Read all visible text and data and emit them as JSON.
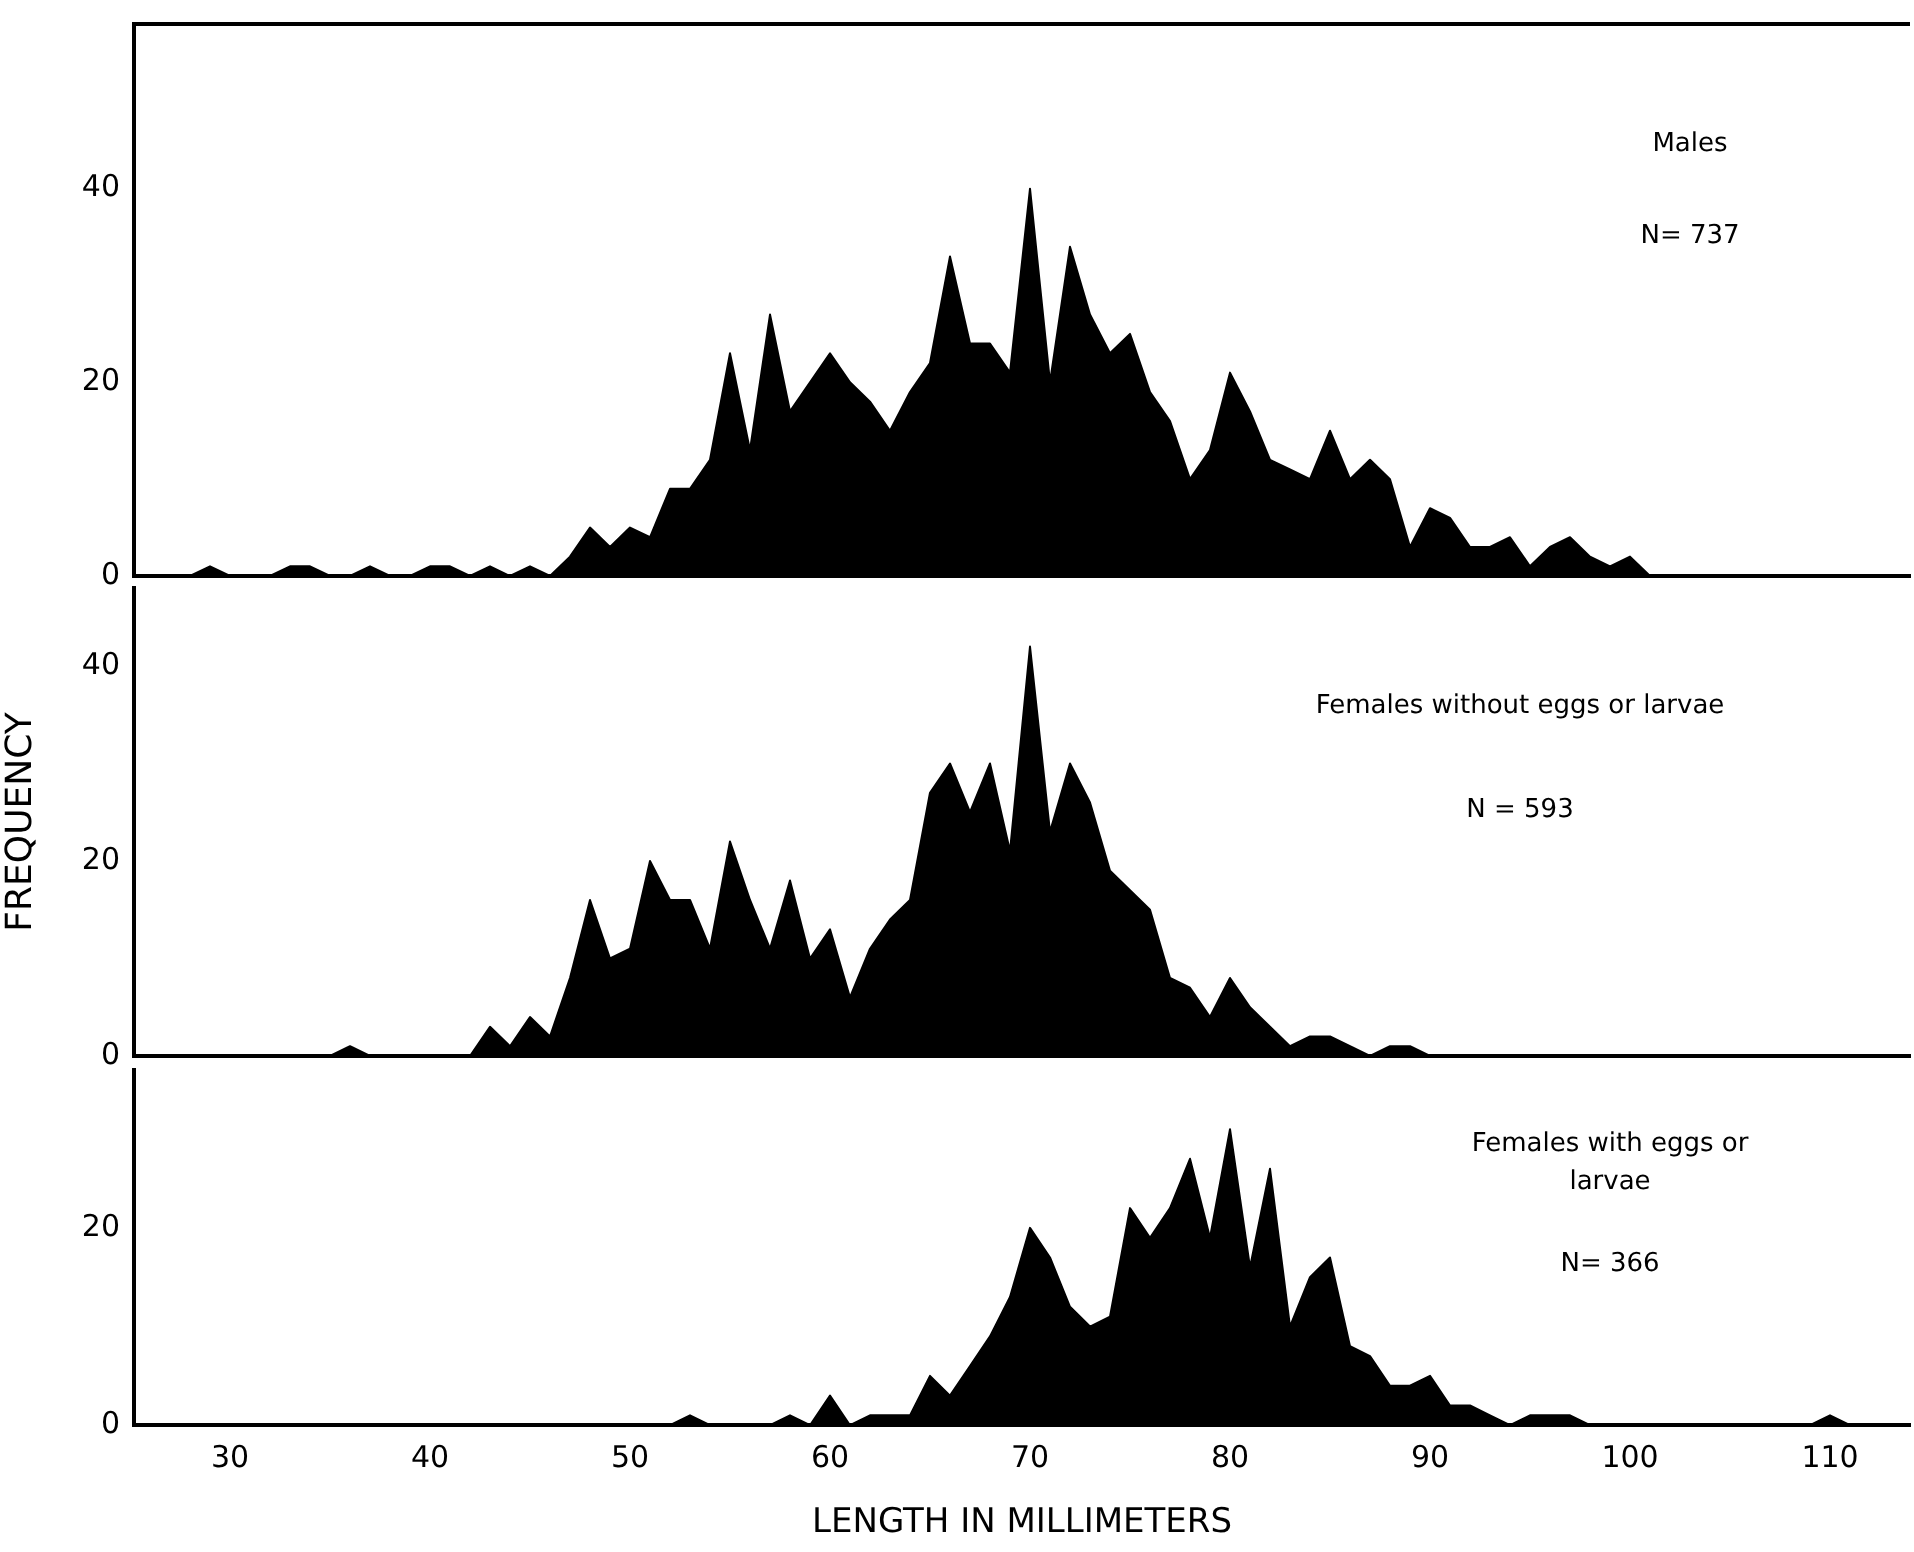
{
  "chart_data": [
    {
      "type": "area",
      "x": [
        28,
        29,
        30,
        31,
        32,
        33,
        34,
        35,
        36,
        37,
        38,
        39,
        40,
        41,
        42,
        43,
        44,
        45,
        46,
        47,
        48,
        49,
        50,
        51,
        52,
        53,
        54,
        55,
        56,
        57,
        58,
        59,
        60,
        61,
        62,
        63,
        64,
        65,
        66,
        67,
        68,
        69,
        70,
        71,
        72,
        73,
        74,
        75,
        76,
        77,
        78,
        79,
        80,
        81,
        82,
        83,
        84,
        85,
        86,
        87,
        88,
        89,
        90,
        91,
        92,
        93,
        94,
        95,
        96,
        97,
        98,
        99,
        100,
        101
      ],
      "series": [
        {
          "color": "#000000",
          "values": [
            0,
            1,
            0,
            0,
            0,
            1,
            1,
            0,
            0,
            1,
            0,
            0,
            1,
            1,
            0,
            1,
            0,
            1,
            0,
            2,
            5,
            3,
            5,
            4,
            9,
            9,
            12,
            23,
            13,
            27,
            17,
            20,
            23,
            20,
            18,
            15,
            19,
            22,
            33,
            24,
            24,
            21,
            40,
            20,
            34,
            27,
            23,
            25,
            19,
            16,
            10,
            13,
            21,
            17,
            12,
            11,
            10,
            15,
            10,
            12,
            10,
            3,
            7,
            6,
            3,
            3,
            4,
            1,
            3,
            4,
            2,
            1,
            2,
            0
          ]
        }
      ],
      "xlim": [
        25.2,
        114
      ],
      "xticks": [
        30,
        40,
        50,
        60,
        70,
        80,
        90,
        100,
        110
      ],
      "ylim": [
        0,
        57
      ],
      "yticks": [
        0,
        20,
        40
      ],
      "tick_labels": "y",
      "annotations": [
        "Males",
        "N= 737"
      ]
    },
    {
      "type": "area",
      "x": [
        35,
        36,
        37,
        38,
        39,
        40,
        41,
        42,
        43,
        44,
        45,
        46,
        47,
        48,
        49,
        50,
        51,
        52,
        53,
        54,
        55,
        56,
        57,
        58,
        59,
        60,
        61,
        62,
        63,
        64,
        65,
        66,
        67,
        68,
        69,
        70,
        71,
        72,
        73,
        74,
        75,
        76,
        77,
        78,
        79,
        80,
        81,
        82,
        83,
        84,
        85,
        86,
        87,
        88,
        89,
        90
      ],
      "series": [
        {
          "color": "#000000",
          "values": [
            0,
            1,
            0,
            0,
            0,
            0,
            0,
            0,
            3,
            1,
            4,
            2,
            8,
            16,
            10,
            11,
            20,
            16,
            16,
            11,
            22,
            16,
            11,
            18,
            10,
            13,
            6,
            11,
            14,
            16,
            27,
            30,
            25,
            30,
            21,
            42,
            23,
            30,
            26,
            19,
            17,
            15,
            8,
            7,
            4,
            8,
            5,
            3,
            1,
            2,
            2,
            1,
            0,
            1,
            1,
            0
          ]
        }
      ],
      "xlim": [
        25.2,
        114
      ],
      "xticks": [
        30,
        40,
        50,
        60,
        70,
        80,
        90,
        100,
        110
      ],
      "ylim": [
        0,
        48
      ],
      "yticks": [
        0,
        20,
        40
      ],
      "tick_labels": "y",
      "ylabel": "FREQUENCY",
      "annotations": [
        "Females without eggs or larvae",
        "N = 593"
      ]
    },
    {
      "type": "area",
      "x": [
        52,
        53,
        54,
        55,
        56,
        57,
        58,
        59,
        60,
        61,
        62,
        63,
        64,
        65,
        66,
        67,
        68,
        69,
        70,
        71,
        72,
        73,
        74,
        75,
        76,
        77,
        78,
        79,
        80,
        81,
        82,
        83,
        84,
        85,
        86,
        87,
        88,
        89,
        90,
        91,
        92,
        93,
        94,
        95,
        96,
        97,
        98,
        99,
        100,
        101,
        102,
        103,
        104,
        105,
        106,
        107,
        108,
        109,
        110,
        111
      ],
      "series": [
        {
          "color": "#000000",
          "values": [
            0,
            1,
            0,
            0,
            0,
            0,
            1,
            0,
            3,
            0,
            1,
            1,
            1,
            5,
            3,
            6,
            9,
            13,
            20,
            17,
            12,
            10,
            11,
            22,
            19,
            22,
            27,
            19,
            30,
            16,
            26,
            10,
            15,
            17,
            8,
            7,
            4,
            4,
            5,
            2,
            2,
            1,
            0,
            1,
            1,
            1,
            0,
            0,
            0,
            0,
            0,
            0,
            0,
            0,
            0,
            0,
            0,
            0,
            1,
            0
          ]
        }
      ],
      "xlim": [
        25.2,
        114
      ],
      "xticks": [
        30,
        40,
        50,
        60,
        70,
        80,
        90,
        100,
        110
      ],
      "ylim": [
        0,
        36
      ],
      "yticks": [
        0,
        20
      ],
      "xlabel": "LENGTH IN MILLIMETERS",
      "annotations": [
        "Females with eggs or larvae",
        "N= 366"
      ]
    }
  ]
}
